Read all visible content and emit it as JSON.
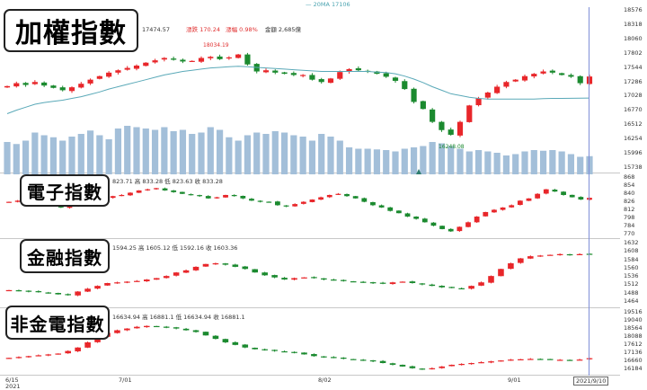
{
  "legend": {
    "ma_label": "20MA 17106"
  },
  "panels": [
    {
      "id": "taiex",
      "title": "加權指數",
      "info": {
        "value": "17474.57",
        "change": "漲跌 170.24",
        "pct": "漲幅 0.98%",
        "volume": "金額 2,685億"
      },
      "y_ticks": [
        "18576",
        "18318",
        "18060",
        "17802",
        "17544",
        "17286",
        "17028",
        "16770",
        "16512",
        "16254",
        "15996",
        "15738"
      ],
      "y_range": [
        15738,
        18576
      ],
      "annotations": {
        "high": "18034.19",
        "low": "16248.08"
      }
    },
    {
      "id": "electronics",
      "title": "電子指數",
      "info": {
        "text": "823.71 高 833.28 低 823.63 收 833.28"
      },
      "y_ticks": [
        "868",
        "854",
        "840",
        "826",
        "812",
        "798",
        "784",
        "770"
      ],
      "y_range": [
        770,
        868
      ]
    },
    {
      "id": "finance",
      "title": "金融指數",
      "info": {
        "text": "1594.25 高 1605.12 低 1592.16 收 1603.36"
      },
      "y_ticks": [
        "1632",
        "1608",
        "1584",
        "1560",
        "1536",
        "1512",
        "1488",
        "1464"
      ],
      "y_range": [
        1464,
        1632
      ]
    },
    {
      "id": "non_fin_elec",
      "title": "非金電指數",
      "info": {
        "text": "16634.94 高 16881.1 低 16634.94 收 16881.1"
      },
      "y_ticks": [
        "19516",
        "19040",
        "18564",
        "18088",
        "17612",
        "17136",
        "16660",
        "16184"
      ],
      "y_range": [
        16184,
        19516
      ]
    }
  ],
  "x_axis": {
    "labels": [
      {
        "text": "6/15",
        "sub": "2021"
      },
      {
        "text": "7/01",
        "sub": ""
      },
      {
        "text": "8/02",
        "sub": ""
      },
      {
        "text": "9/01",
        "sub": ""
      }
    ],
    "current_date": "2021/9/10"
  },
  "colors": {
    "up": "#e8262a",
    "down": "#1b8a2f",
    "volume": "#a3bfd9",
    "ma": "#5aa9b8"
  },
  "chart_data": [
    {
      "type": "candlestick",
      "name": "加權指數",
      "close": [
        17310,
        17360,
        17330,
        17380,
        17320,
        17280,
        17240,
        17290,
        17350,
        17420,
        17480,
        17540,
        17580,
        17620,
        17660,
        17710,
        17750,
        17790,
        17760,
        17730,
        17740,
        17790,
        17810,
        17770,
        17800,
        17850,
        17680,
        17560,
        17580,
        17540,
        17520,
        17500,
        17500,
        17420,
        17380,
        17440,
        17550,
        17600,
        17580,
        17560,
        17520,
        17470,
        17400,
        17260,
        17040,
        16920,
        16700,
        16560,
        16480,
        16700,
        16980,
        17100,
        17200,
        17300,
        17380,
        17420,
        17480,
        17520,
        17560,
        17540,
        17500,
        17470,
        17360,
        17474
      ],
      "volume": [
        0.48,
        0.45,
        0.5,
        0.62,
        0.58,
        0.55,
        0.5,
        0.56,
        0.6,
        0.65,
        0.58,
        0.52,
        0.68,
        0.72,
        0.7,
        0.68,
        0.66,
        0.7,
        0.64,
        0.66,
        0.6,
        0.62,
        0.7,
        0.66,
        0.55,
        0.5,
        0.58,
        0.62,
        0.6,
        0.64,
        0.62,
        0.58,
        0.56,
        0.5,
        0.6,
        0.56,
        0.5,
        0.4,
        0.38,
        0.38,
        0.37,
        0.36,
        0.34,
        0.38,
        0.4,
        0.42,
        0.48,
        0.46,
        0.42,
        0.38,
        0.34,
        0.36,
        0.34,
        0.32,
        0.28,
        0.3,
        0.34,
        0.36,
        0.35,
        0.36,
        0.34,
        0.3,
        0.26,
        0.27
      ],
      "ma20": [
        16840,
        16900,
        16950,
        17000,
        17030,
        17050,
        17070,
        17100,
        17130,
        17170,
        17210,
        17260,
        17300,
        17340,
        17380,
        17420,
        17460,
        17500,
        17530,
        17560,
        17580,
        17600,
        17620,
        17630,
        17640,
        17650,
        17640,
        17630,
        17620,
        17610,
        17600,
        17590,
        17580,
        17570,
        17560,
        17560,
        17560,
        17560,
        17560,
        17560,
        17550,
        17540,
        17520,
        17480,
        17430,
        17370,
        17300,
        17240,
        17180,
        17150,
        17120,
        17100,
        17090,
        17090,
        17090,
        17090,
        17090,
        17090,
        17095,
        17100,
        17100,
        17102,
        17104,
        17106
      ]
    },
    {
      "type": "candlestick",
      "name": "電子指數",
      "close": [
        826,
        828,
        824,
        822,
        820,
        818,
        816,
        818,
        822,
        826,
        830,
        833,
        836,
        838,
        842,
        846,
        848,
        850,
        846,
        843,
        840,
        838,
        836,
        832,
        834,
        838,
        836,
        832,
        828,
        826,
        826,
        820,
        818,
        822,
        826,
        830,
        834,
        838,
        840,
        836,
        832,
        826,
        820,
        816,
        810,
        806,
        800,
        796,
        790,
        784,
        778,
        774,
        782,
        790,
        800,
        808,
        812,
        816,
        820,
        828,
        832,
        840,
        848,
        844,
        838,
        834,
        830,
        833
      ]
    },
    {
      "type": "candlestick",
      "name": "金融指數",
      "close": [
        1500,
        1498,
        1496,
        1494,
        1492,
        1488,
        1486,
        1496,
        1504,
        1512,
        1520,
        1522,
        1524,
        1526,
        1530,
        1534,
        1540,
        1550,
        1556,
        1566,
        1574,
        1576,
        1572,
        1566,
        1560,
        1550,
        1542,
        1536,
        1530,
        1534,
        1536,
        1534,
        1530,
        1528,
        1526,
        1524,
        1522,
        1520,
        1518,
        1522,
        1524,
        1520,
        1516,
        1512,
        1508,
        1506,
        1504,
        1512,
        1522,
        1540,
        1560,
        1576,
        1590,
        1596,
        1598,
        1600,
        1602,
        1600,
        1602,
        1603
      ]
    },
    {
      "type": "candlestick",
      "name": "非金電指數",
      "close": [
        16900,
        16950,
        17000,
        17050,
        17100,
        17150,
        17300,
        17500,
        17800,
        18100,
        18350,
        18500,
        18600,
        18700,
        18750,
        18700,
        18650,
        18600,
        18500,
        18400,
        18200,
        18000,
        17800,
        17650,
        17500,
        17400,
        17350,
        17300,
        17250,
        17200,
        17100,
        17000,
        16950,
        16900,
        16850,
        16800,
        16750,
        16700,
        16600,
        16500,
        16400,
        16300,
        16250,
        16300,
        16400,
        16500,
        16550,
        16600,
        16650,
        16700,
        16750,
        16800,
        16820,
        16840,
        16820,
        16800,
        16790,
        16780,
        16800,
        16881
      ]
    }
  ]
}
